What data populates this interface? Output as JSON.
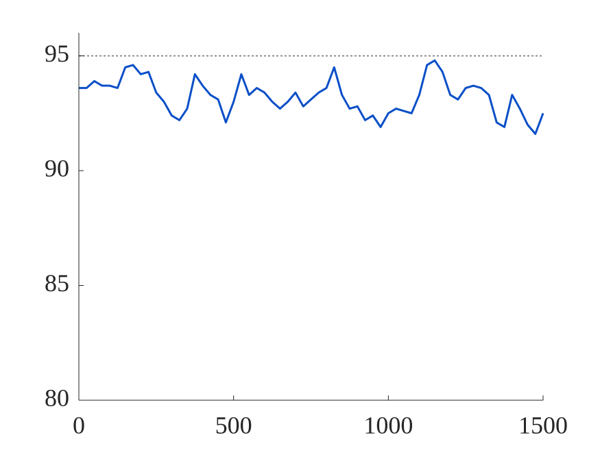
{
  "chart_data": {
    "type": "line",
    "x": [
      0,
      25,
      50,
      75,
      100,
      125,
      150,
      175,
      200,
      225,
      250,
      275,
      300,
      325,
      350,
      375,
      400,
      425,
      450,
      475,
      500,
      525,
      550,
      575,
      600,
      625,
      650,
      675,
      700,
      725,
      750,
      775,
      800,
      825,
      850,
      875,
      900,
      925,
      950,
      975,
      1000,
      1025,
      1050,
      1075,
      1100,
      1125,
      1150,
      1175,
      1200,
      1225,
      1250,
      1275,
      1300,
      1325,
      1350,
      1375,
      1400,
      1425,
      1450,
      1475,
      1500
    ],
    "series": [
      {
        "color": "#0a4fc8",
        "values": [
          93.6,
          93.6,
          93.9,
          93.7,
          93.7,
          93.6,
          94.5,
          94.6,
          94.2,
          94.3,
          93.4,
          93.0,
          92.4,
          92.2,
          92.7,
          94.2,
          93.7,
          93.3,
          93.1,
          92.1,
          93.0,
          94.2,
          93.3,
          93.6,
          93.4,
          93.0,
          92.7,
          93.0,
          93.4,
          92.8,
          93.1,
          93.4,
          93.6,
          94.5,
          93.3,
          92.7,
          92.8,
          92.2,
          92.4,
          91.9,
          92.5,
          92.7,
          92.6,
          92.5,
          93.3,
          94.6,
          94.8,
          94.3,
          93.3,
          93.1,
          93.6,
          93.7,
          93.6,
          93.3,
          92.1,
          91.9,
          93.3,
          92.7,
          92.0,
          91.6,
          92.5
        ]
      }
    ],
    "reference_line": {
      "value": 95,
      "color": "#8c8c8c"
    },
    "xlim": [
      0,
      1500
    ],
    "xticks": [
      0,
      500,
      1000,
      1500
    ],
    "ylim": [
      80,
      96
    ],
    "yticks": [
      80,
      85,
      90,
      95
    ]
  }
}
